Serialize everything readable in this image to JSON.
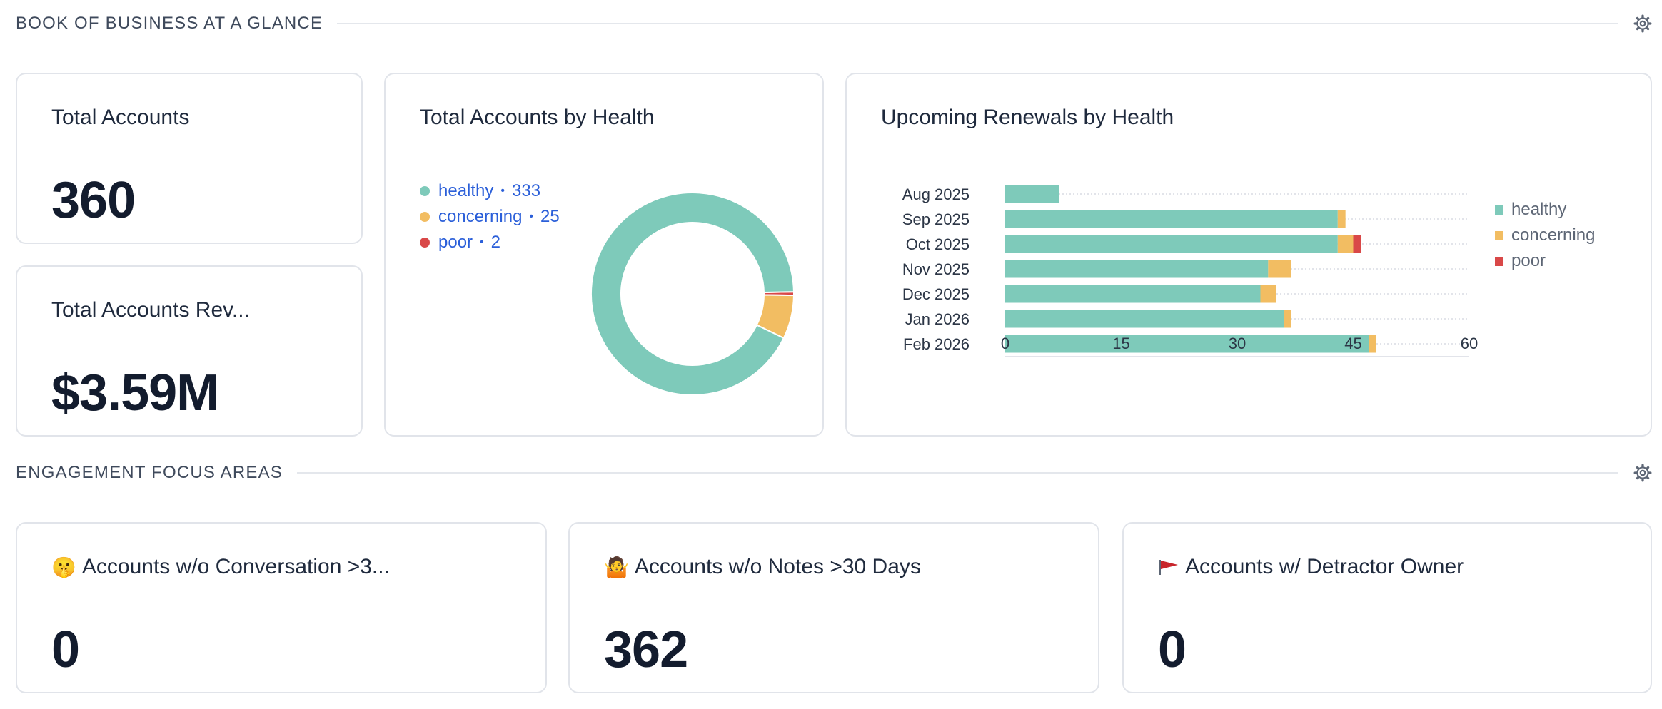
{
  "sections": {
    "book": {
      "title": "BOOK OF BUSINESS AT A GLANCE"
    },
    "engagement": {
      "title": "ENGAGEMENT FOCUS AREAS"
    }
  },
  "colors": {
    "healthy": "#7ecaba",
    "concerning": "#f2bd62",
    "poor": "#d94848"
  },
  "cards": {
    "total_accounts": {
      "title": "Total Accounts",
      "value": "360"
    },
    "total_revenue": {
      "title": "Total Accounts Rev...",
      "value": "$3.59M"
    },
    "no_conversation": {
      "icon": "shushing-face-icon",
      "emoji": "🤫",
      "title": "Accounts w/o Conversation >3...",
      "value": "0"
    },
    "no_notes": {
      "icon": "person-shrugging-icon",
      "emoji": "🤷",
      "title": "Accounts w/o Notes >30 Days",
      "value": "362"
    },
    "detractor": {
      "icon": "red-flag-icon",
      "emoji": "🚩",
      "title": "Accounts w/ Detractor Owner",
      "value": "0"
    }
  },
  "health_card": {
    "title": "Total Accounts by Health",
    "legend": [
      {
        "label": "healthy",
        "sep": "•",
        "count": "333",
        "color": "#7ecaba"
      },
      {
        "label": "concerning",
        "sep": "•",
        "count": "25",
        "color": "#f2bd62"
      },
      {
        "label": "poor",
        "sep": "•",
        "count": "2",
        "color": "#d94848"
      }
    ]
  },
  "renewals_card": {
    "title": "Upcoming Renewals by Health",
    "legend": [
      {
        "label": "healthy",
        "color": "#7ecaba"
      },
      {
        "label": "concerning",
        "color": "#f2bd62"
      },
      {
        "label": "poor",
        "color": "#d94848"
      }
    ]
  },
  "chart_data": [
    {
      "type": "pie",
      "title": "Total Accounts by Health",
      "donut": true,
      "categories": [
        "healthy",
        "concerning",
        "poor"
      ],
      "values": [
        333,
        25,
        2
      ],
      "colors": [
        "#7ecaba",
        "#f2bd62",
        "#d94848"
      ]
    },
    {
      "type": "bar",
      "orientation": "horizontal",
      "stacked": true,
      "title": "Upcoming Renewals by Health",
      "categories": [
        "Aug 2025",
        "Sep 2025",
        "Oct 2025",
        "Nov 2025",
        "Dec 2025",
        "Jan 2026",
        "Feb 2026"
      ],
      "series": [
        {
          "name": "healthy",
          "color": "#7ecaba",
          "values": [
            7,
            43,
            43,
            34,
            33,
            36,
            47
          ]
        },
        {
          "name": "concerning",
          "color": "#f2bd62",
          "values": [
            0,
            1,
            2,
            3,
            2,
            1,
            1
          ]
        },
        {
          "name": "poor",
          "color": "#d94848",
          "values": [
            0,
            0,
            1,
            0,
            0,
            0,
            0
          ]
        }
      ],
      "xlim": [
        0,
        60
      ],
      "xticks": [
        "0",
        "15",
        "30",
        "45",
        "60"
      ],
      "grid": "dotted horizontal",
      "legend": "right"
    }
  ]
}
